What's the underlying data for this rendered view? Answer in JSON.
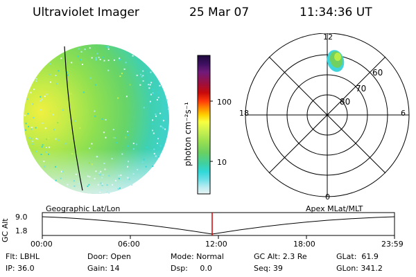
{
  "header": {
    "instrument": "Ultraviolet Imager",
    "date": "25 Mar 07",
    "time": "11:34:36 UT"
  },
  "colorbar": {
    "label": "photon cm⁻²s⁻¹",
    "tick_labels": [
      "100",
      "10"
    ],
    "colors": [
      "#1e0a3c",
      "#3c1060",
      "#701a7a",
      "#9a1040",
      "#c80a0a",
      "#ff3a0a",
      "#ff8a00",
      "#ffd000",
      "#f8ff40",
      "#c8f050",
      "#9ae050",
      "#6ad060",
      "#40d0a0",
      "#30d8d8",
      "#70e0e8",
      "#b8ecf0",
      "#e8f4f4"
    ]
  },
  "polar": {
    "mlt_labels": {
      "top": "12",
      "left": "18",
      "right": "6",
      "bottom": "0"
    },
    "lat_labels": [
      "60",
      "70",
      "80"
    ]
  },
  "timeline": {
    "left_label": "Geographic Lat/Lon",
    "right_label": "Apex MLat/MLT",
    "ylabel": "GC Alt",
    "y_ticks": [
      "9.0",
      "1.8"
    ],
    "x_ticks": [
      "00:00",
      "06:00",
      "12:00",
      "18:00",
      "23:59"
    ],
    "marker_time": "11:34",
    "marker_color": "#d00000"
  },
  "footer": {
    "flt": "Flt: LBHL",
    "ip": "IP: 36.0",
    "door": "Door: Open",
    "gain": "Gain: 14",
    "mode": "Mode: Normal",
    "dsp": "Dsp:     0.0",
    "gcalt": "GC Alt: 2.3 Re",
    "seq": "Seq: 39",
    "glat": "GLat:  61.9",
    "glon": "GLon: 341.2"
  }
}
